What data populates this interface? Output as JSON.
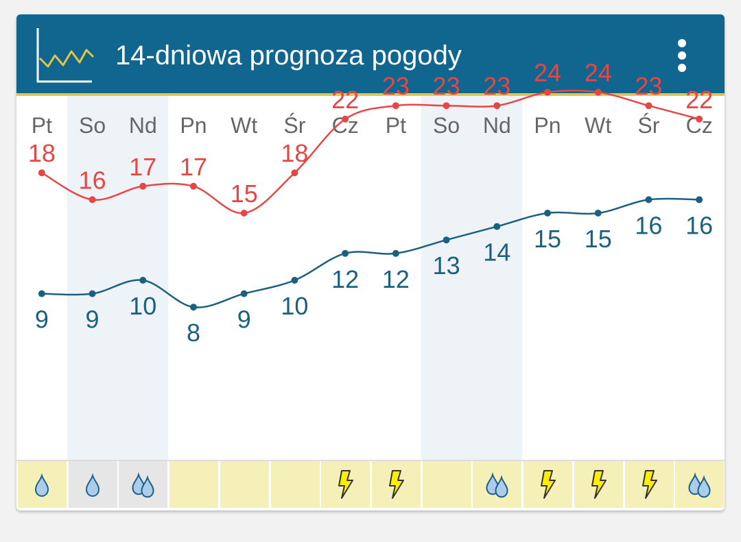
{
  "header": {
    "title": "14-dniowa prognoza pogody",
    "logo_icon": "chart-line-icon",
    "menu_icon": "more-vert-icon",
    "background_color": "#11668f",
    "accent_color": "#e2c64a"
  },
  "days": [
    {
      "label": "Pt",
      "high": 18,
      "low": 9,
      "icon": "rain-drop-icon",
      "weekend": false
    },
    {
      "label": "So",
      "high": 16,
      "low": 9,
      "icon": "rain-drop-icon",
      "weekend": true
    },
    {
      "label": "Nd",
      "high": 17,
      "low": 10,
      "icon": "heavy-rain-icon",
      "weekend": true
    },
    {
      "label": "Pn",
      "high": 17,
      "low": 8,
      "icon": "none",
      "weekend": false
    },
    {
      "label": "Wt",
      "high": 15,
      "low": 9,
      "icon": "none",
      "weekend": false
    },
    {
      "label": "Śr",
      "high": 18,
      "low": 10,
      "icon": "none",
      "weekend": false
    },
    {
      "label": "Cz",
      "high": 22,
      "low": 12,
      "icon": "lightning-icon",
      "weekend": false
    },
    {
      "label": "Pt",
      "high": 23,
      "low": 12,
      "icon": "lightning-icon",
      "weekend": false
    },
    {
      "label": "So",
      "high": 23,
      "low": 13,
      "icon": "none",
      "weekend": true
    },
    {
      "label": "Nd",
      "high": 23,
      "low": 14,
      "icon": "heavy-rain-icon",
      "weekend": true
    },
    {
      "label": "Pn",
      "high": 24,
      "low": 15,
      "icon": "lightning-icon",
      "weekend": false
    },
    {
      "label": "Wt",
      "high": 24,
      "low": 15,
      "icon": "lightning-icon",
      "weekend": false
    },
    {
      "label": "Śr",
      "high": 23,
      "low": 16,
      "icon": "lightning-icon",
      "weekend": false
    },
    {
      "label": "Cz",
      "high": 22,
      "low": 16,
      "icon": "heavy-rain-icon",
      "weekend": false
    }
  ],
  "colors": {
    "high_line": "#e84545",
    "low_line": "#1a607f",
    "weekend_band": "#eef3f7",
    "day_label": "#666666",
    "cell_bg": "#f5f0b8",
    "cell_bg_grey": "#e6e6e6",
    "drop_fill": "#a9cdea",
    "drop_stroke": "#1f5f86",
    "bolt_fill": "#ffee00",
    "bolt_stroke": "#333333"
  }
}
